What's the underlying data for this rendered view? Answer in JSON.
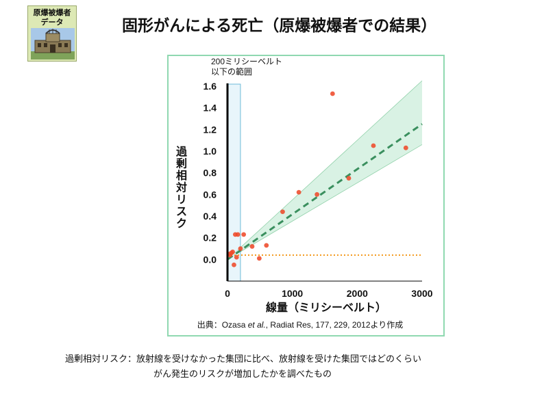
{
  "logo": {
    "line1": "原爆被爆者",
    "line2": "データ"
  },
  "title": "固形がんによる死亡（原爆被爆者での結果）",
  "chart_data": {
    "type": "scatter",
    "ylabel": "過剰相対リスク",
    "xlabel": "線量（ミリシーベルト）",
    "xlim": [
      0,
      3000
    ],
    "ylim": [
      -0.2,
      1.65
    ],
    "xticks": [
      0,
      1000,
      2000,
      3000
    ],
    "yticks": [
      0.0,
      0.2,
      0.4,
      0.6,
      0.8,
      1.0,
      1.2,
      1.4,
      1.6
    ],
    "xtick_labels": [
      "0",
      "1000",
      "2000",
      "3000"
    ],
    "ytick_labels": [
      "0.0",
      "0.2",
      "0.4",
      "0.6",
      "0.8",
      "1.0",
      "1.2",
      "1.4",
      "1.6"
    ],
    "highlight_region": {
      "x_range": [
        0,
        200
      ],
      "label_line1": "200ミリシーベルト",
      "label_line2": "以下の範囲"
    },
    "points": [
      {
        "x": 20,
        "y": 0.05
      },
      {
        "x": 40,
        "y": 0.04
      },
      {
        "x": 60,
        "y": 0.06
      },
      {
        "x": 80,
        "y": 0.07
      },
      {
        "x": 100,
        "y": -0.05
      },
      {
        "x": 120,
        "y": 0.23
      },
      {
        "x": 140,
        "y": 0.02
      },
      {
        "x": 160,
        "y": 0.23
      },
      {
        "x": 200,
        "y": 0.1
      },
      {
        "x": 250,
        "y": 0.23
      },
      {
        "x": 380,
        "y": 0.12
      },
      {
        "x": 490,
        "y": 0.01
      },
      {
        "x": 600,
        "y": 0.13
      },
      {
        "x": 850,
        "y": 0.44
      },
      {
        "x": 1100,
        "y": 0.62
      },
      {
        "x": 1380,
        "y": 0.6
      },
      {
        "x": 1620,
        "y": 1.53
      },
      {
        "x": 1870,
        "y": 0.75
      },
      {
        "x": 2250,
        "y": 1.05
      },
      {
        "x": 2750,
        "y": 1.03
      }
    ],
    "fit_line": {
      "x": [
        0,
        3000
      ],
      "y": [
        0.0,
        1.25
      ]
    },
    "confidence_band": {
      "x": [
        0,
        3000
      ],
      "upper": [
        0.0,
        1.65
      ],
      "lower": [
        0.0,
        1.06
      ]
    },
    "reference_line_y": 0.04,
    "colors": {
      "points": "#ee4a2a",
      "fit": "#3a8f5e",
      "band": "#d9f2e4",
      "reference": "#f39a1f",
      "highlight": "#d8eef8",
      "highlight_border": "#6cbad8"
    },
    "source_prefix": "出典：Ozasa ",
    "source_italic": "et al.",
    "source_suffix": ",  Radiat Res, 177, 229, 2012より作成"
  },
  "note": {
    "line1": "過剰相対リスク：放射線を受けなかった集団に比べ、放射線を受けた集団ではどのくらい",
    "line2": "がん発生のリスクが増加したかを調べたもの"
  }
}
